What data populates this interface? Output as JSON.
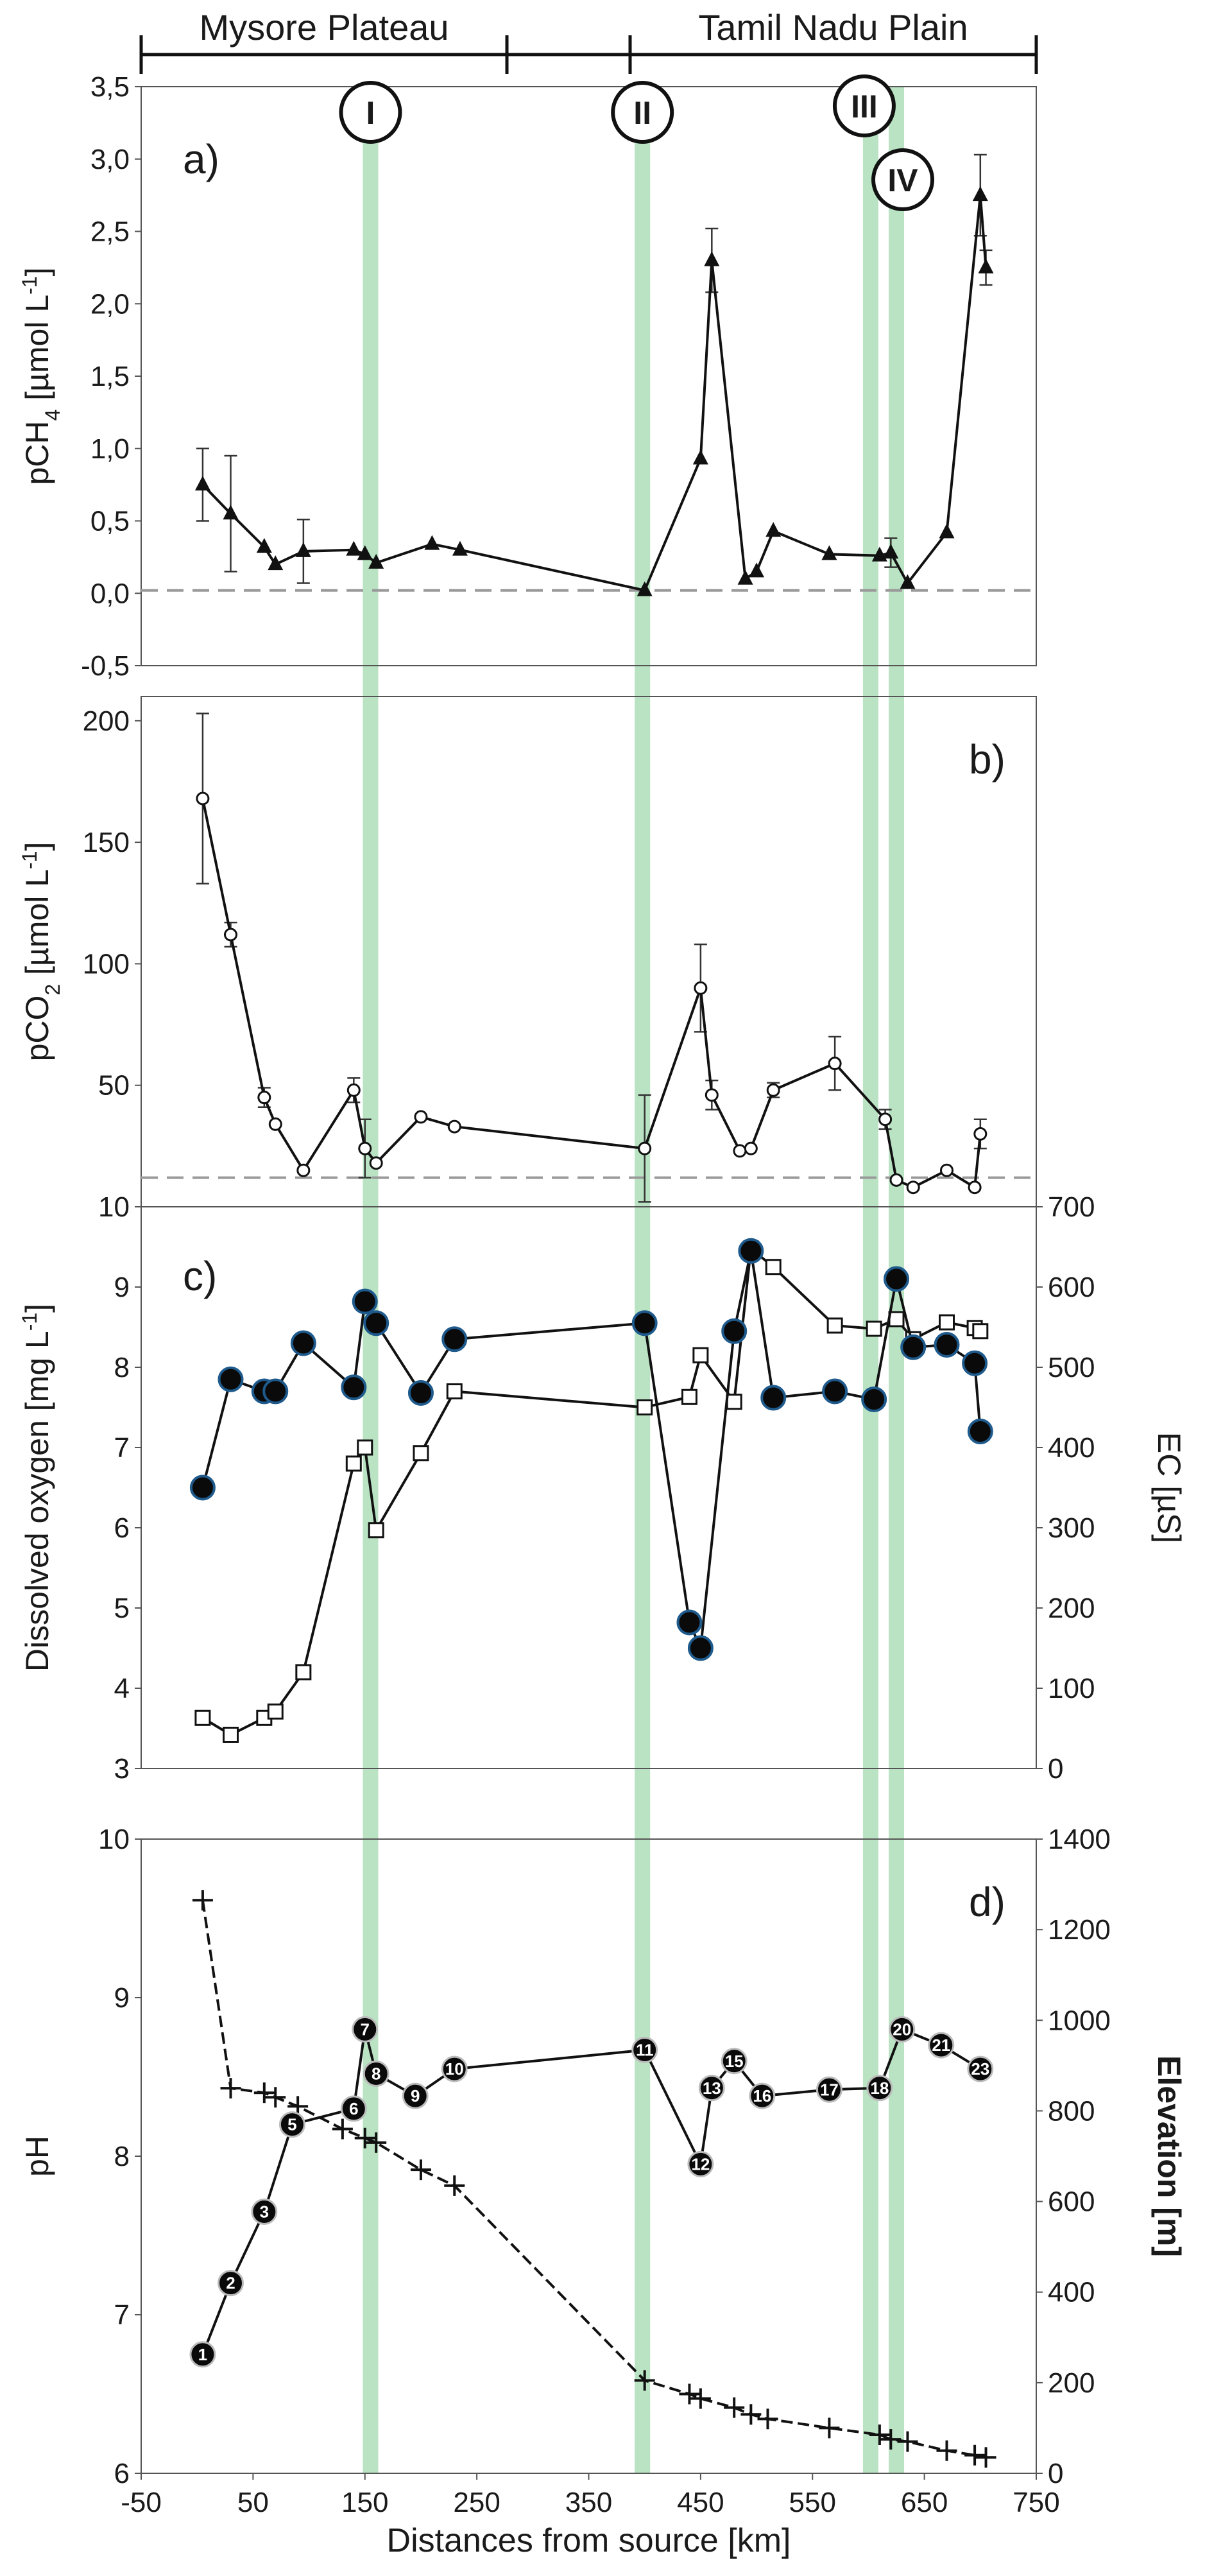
{
  "figure": {
    "top_regions": [
      "Mysore Plateau",
      "Tamil Nadu Plain"
    ],
    "confluences": [
      {
        "label": "I",
        "x": 155
      },
      {
        "label": "II",
        "x": 398
      },
      {
        "label": "III",
        "x": 602
      },
      {
        "label": "IV",
        "x": 625
      }
    ],
    "colors": {
      "confluence_band": "#b9e3c3",
      "circle_fill_do": "#0a0a0a",
      "circle_edge_do": "#1f5a8c",
      "line": "#111111",
      "zero_line": "#9a9a9a"
    }
  },
  "chart_data": [
    {
      "id": "a",
      "type": "line",
      "panel_label": "a)",
      "ylabel_main": "pCH",
      "ylabel_sub": "4",
      "ylabel_unit": " [µmol L",
      "ylabel_sup": "-1",
      "ylabel_end": "]",
      "ylim": [
        -0.5,
        3.5
      ],
      "yticks": [
        -0.5,
        0.0,
        0.5,
        1.0,
        1.5,
        2.0,
        2.5,
        3.0,
        3.5
      ],
      "ytick_labels": [
        "-0,5",
        "0,0",
        "0,5",
        "1,0",
        "1,5",
        "2,0",
        "2,5",
        "3,0",
        "3,5"
      ],
      "reference_line": 0.02,
      "x": [
        5,
        30,
        60,
        70,
        95,
        140,
        150,
        160,
        210,
        235,
        400,
        450,
        460,
        490,
        500,
        515,
        565,
        610,
        620,
        635,
        670,
        700,
        705
      ],
      "y": [
        0.75,
        0.55,
        0.32,
        0.2,
        0.29,
        0.3,
        0.27,
        0.21,
        0.34,
        0.3,
        0.02,
        0.93,
        2.3,
        0.1,
        0.15,
        0.43,
        0.27,
        0.26,
        0.28,
        0.07,
        0.42,
        2.75,
        2.25
      ],
      "err": [
        0.25,
        0.4,
        0,
        0,
        0.22,
        0,
        0,
        0,
        0,
        0,
        0,
        0,
        0.22,
        0,
        0,
        0,
        0,
        0,
        0.1,
        0,
        0,
        0.28,
        0.12
      ]
    },
    {
      "id": "b",
      "type": "line",
      "panel_label": "b)",
      "ylabel_main": "pCO",
      "ylabel_sub": "2",
      "ylabel_unit": " [µmol L",
      "ylabel_sup": "-1",
      "ylabel_end": "]",
      "ylim": [
        0,
        210
      ],
      "yticks": [
        50,
        100,
        150,
        200
      ],
      "ytick_labels": [
        "50",
        "100",
        "150",
        "200"
      ],
      "reference_line": 12,
      "x": [
        5,
        30,
        60,
        70,
        95,
        140,
        150,
        160,
        200,
        230,
        400,
        450,
        460,
        485,
        495,
        515,
        570,
        615,
        625,
        640,
        670,
        695,
        700
      ],
      "y": [
        168,
        112,
        45,
        34,
        15,
        48,
        24,
        18,
        37,
        33,
        24,
        90,
        46,
        23,
        24,
        48,
        59,
        36,
        11,
        8,
        15,
        8,
        30
      ],
      "err": [
        35,
        5,
        4,
        0,
        0,
        5,
        12,
        0,
        0,
        0,
        22,
        18,
        6,
        0,
        0,
        3,
        11,
        4,
        0,
        0,
        0,
        0,
        6
      ]
    },
    {
      "id": "c",
      "type": "line",
      "panel_label": "c)",
      "ylabel": "Dissolved oxygen [mg L",
      "ylabel_sup": "-1",
      "ylabel_end": "]",
      "y2label": "EC [µS]",
      "ylim": [
        3,
        10
      ],
      "y2lim": [
        0,
        700
      ],
      "yticks": [
        3,
        4,
        5,
        6,
        7,
        8,
        9,
        10
      ],
      "y2ticks": [
        0,
        100,
        200,
        300,
        400,
        500,
        600,
        700
      ],
      "series": [
        {
          "name": "Dissolved oxygen",
          "axis": "left",
          "marker": "circle",
          "x": [
            5,
            30,
            60,
            70,
            95,
            140,
            150,
            160,
            200,
            230,
            400,
            440,
            450,
            480,
            495,
            515,
            570,
            605,
            625,
            640,
            670,
            695,
            700
          ],
          "y": [
            6.5,
            7.85,
            7.7,
            7.7,
            8.3,
            7.75,
            8.82,
            8.55,
            7.68,
            8.35,
            8.55,
            4.82,
            4.5,
            8.45,
            9.45,
            7.62,
            7.7,
            7.6,
            9.1,
            8.25,
            8.28,
            8.05,
            7.2
          ]
        },
        {
          "name": "EC",
          "axis": "right",
          "marker": "square",
          "x": [
            5,
            30,
            60,
            70,
            95,
            140,
            150,
            160,
            200,
            230,
            400,
            440,
            450,
            480,
            495,
            515,
            570,
            605,
            625,
            640,
            670,
            695,
            700
          ],
          "y": [
            63,
            42,
            63,
            71,
            120,
            380,
            400,
            297,
            393,
            470,
            450,
            463,
            515,
            457,
            648,
            625,
            552,
            548,
            560,
            535,
            556,
            549,
            545
          ]
        }
      ]
    },
    {
      "id": "d",
      "type": "line",
      "panel_label": "d)",
      "ylabel": "pH",
      "y2label": "Elevation [m]",
      "xlabel": "Distances from source [km]",
      "xlim": [
        -50,
        750
      ],
      "xticks": [
        -50,
        50,
        150,
        250,
        350,
        450,
        550,
        650,
        750
      ],
      "xtick_labels": [
        "-50",
        "50",
        "150",
        "250",
        "350",
        "450",
        "550",
        "650",
        "750"
      ],
      "ylim": [
        6,
        10
      ],
      "y2lim": [
        0,
        1400
      ],
      "yticks": [
        6,
        7,
        8,
        9,
        10
      ],
      "y2ticks": [
        0,
        200,
        400,
        600,
        800,
        1000,
        1200,
        1400
      ],
      "series": [
        {
          "name": "pH",
          "axis": "left",
          "marker": "numbered-circle",
          "labels": [
            "1",
            "2",
            "3",
            "5",
            "6",
            "7",
            "8",
            "9",
            "10",
            "11",
            "12",
            "13",
            "15",
            "16",
            "17",
            "18",
            "20",
            "21",
            "23"
          ],
          "x": [
            5,
            30,
            60,
            85,
            140,
            150,
            160,
            195,
            230,
            400,
            450,
            460,
            480,
            505,
            565,
            610,
            630,
            665,
            700
          ],
          "y": [
            6.75,
            7.2,
            7.65,
            8.2,
            8.3,
            8.8,
            8.52,
            8.38,
            8.55,
            8.67,
            7.95,
            8.43,
            8.6,
            8.38,
            8.42,
            8.43,
            8.8,
            8.7,
            8.55
          ]
        },
        {
          "name": "Elevation",
          "axis": "right",
          "marker": "plus",
          "x": [
            5,
            30,
            60,
            70,
            90,
            130,
            150,
            160,
            200,
            230,
            400,
            440,
            450,
            480,
            495,
            510,
            565,
            610,
            620,
            635,
            670,
            695,
            705
          ],
          "y": [
            1265,
            850,
            840,
            830,
            810,
            760,
            740,
            730,
            670,
            635,
            205,
            175,
            165,
            145,
            130,
            120,
            100,
            85,
            75,
            70,
            50,
            40,
            35
          ]
        }
      ]
    }
  ]
}
